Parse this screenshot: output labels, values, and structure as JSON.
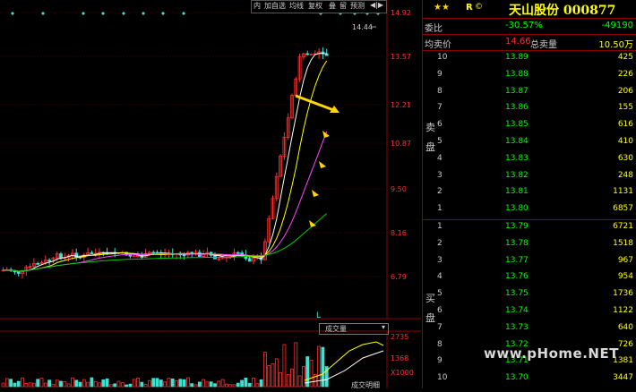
{
  "toolbar": {
    "items": [
      "内",
      "加自选",
      "均线",
      "复权",
      "叠",
      "留",
      "预测"
    ],
    "nav": "◀|▶"
  },
  "chart": {
    "price_axis": [
      "14.92",
      "13.57",
      "12.21",
      "10.87",
      "9.50",
      "8.16",
      "6.79"
    ],
    "peak_label": "14.44",
    "volume_selector": "成交量",
    "volume_axis": [
      "2735",
      "1368",
      "X1000"
    ],
    "bottom_label": "成交明细"
  },
  "colors": {
    "up": "#ff3030",
    "down": "#40e0d0",
    "ma5": "#ffffff",
    "ma10": "#ffff00",
    "ma20": "#ff44ff",
    "ma60": "#00cc00",
    "grid": "#8b0000",
    "arrow": "#ffd700"
  },
  "panel": {
    "stars": "★★",
    "r": "R",
    "rc": "©",
    "title": "天山股份 000877",
    "weibi_label": "委比",
    "weibi_value": "-30.57%",
    "weicha_value": "-49190",
    "avg_label": "均卖价",
    "avg_value": "14.66",
    "total_label": "总卖量",
    "total_value": "10.50万",
    "sell_side": "卖盘",
    "buy_side": "买盘",
    "sell": [
      {
        "lvl": "10",
        "price": "13.89",
        "vol": "425"
      },
      {
        "lvl": "9",
        "price": "13.88",
        "vol": "226"
      },
      {
        "lvl": "8",
        "price": "13.87",
        "vol": "206"
      },
      {
        "lvl": "7",
        "price": "13.86",
        "vol": "155"
      },
      {
        "lvl": "6",
        "price": "13.85",
        "vol": "616"
      },
      {
        "lvl": "5",
        "price": "13.84",
        "vol": "410"
      },
      {
        "lvl": "4",
        "price": "13.83",
        "vol": "630"
      },
      {
        "lvl": "3",
        "price": "13.82",
        "vol": "248"
      },
      {
        "lvl": "2",
        "price": "13.81",
        "vol": "1131"
      },
      {
        "lvl": "1",
        "price": "13.80",
        "vol": "6857"
      }
    ],
    "buy": [
      {
        "lvl": "1",
        "price": "13.79",
        "vol": "6721"
      },
      {
        "lvl": "2",
        "price": "13.78",
        "vol": "1518"
      },
      {
        "lvl": "3",
        "price": "13.77",
        "vol": "967"
      },
      {
        "lvl": "4",
        "price": "13.76",
        "vol": "954"
      },
      {
        "lvl": "5",
        "price": "13.75",
        "vol": "1736"
      },
      {
        "lvl": "6",
        "price": "13.74",
        "vol": "1122"
      },
      {
        "lvl": "7",
        "price": "13.73",
        "vol": "640"
      },
      {
        "lvl": "8",
        "price": "13.72",
        "vol": "726"
      },
      {
        "lvl": "9",
        "price": "13.71",
        "vol": "1381"
      },
      {
        "lvl": "10",
        "price": "13.70",
        "vol": "3447"
      }
    ]
  },
  "watermark": "www.pHome.NET"
}
